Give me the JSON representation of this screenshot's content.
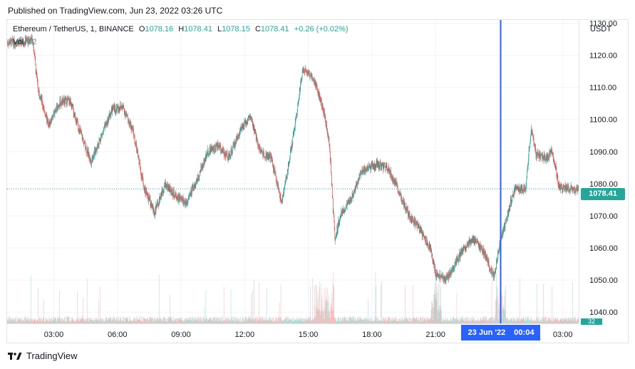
{
  "header": {
    "published": "Published on TradingView.com, Jun 23, 2022 03:26 UTC"
  },
  "legend": {
    "symbol": "Ethereum / TetherUS, 1, BINANCE",
    "open_label": "O",
    "open": "1078.16",
    "high_label": "H",
    "high": "1078.41",
    "low_label": "L",
    "low": "1078.15",
    "close_label": "C",
    "close": "1078.41",
    "change": "+0.26 (+0.02%)",
    "vol_label": "Vol",
    "vol_value": "32"
  },
  "axis": {
    "currency": "USDT"
  },
  "last_price": "1078.41",
  "last_volume": "32",
  "crosshair": {
    "date": "23 Jun '22",
    "time": "00:04"
  },
  "footer": {
    "brand": "TradingView",
    "logo_icon": "tradingview-logo-icon"
  },
  "colors": {
    "up": "#26a69a",
    "down": "#ef5350",
    "crosshair": "#2962ff",
    "grid": "#f0f3fa"
  },
  "chart_data": {
    "type": "candlestick",
    "title": "Ethereum / TetherUS, 1, BINANCE",
    "ylabel": "USDT",
    "ylim": [
      1036.5,
      1131
    ],
    "y_ticks": [
      1040,
      1050,
      1060,
      1070,
      1080,
      1090,
      1100,
      1110,
      1120,
      1130
    ],
    "x_ticks": [
      "03:00",
      "06:00",
      "09:00",
      "12:00",
      "15:00",
      "18:00",
      "21:00",
      "23 Jun '22",
      "03:00"
    ],
    "grid": true,
    "price_path": [
      [
        "01:30",
        1124
      ],
      [
        "02:00",
        1125
      ],
      [
        "02:15",
        1110
      ],
      [
        "02:45",
        1098
      ],
      [
        "03:15",
        1105
      ],
      [
        "03:45",
        1106
      ],
      [
        "04:15",
        1096
      ],
      [
        "04:45",
        1087
      ],
      [
        "05:15",
        1095
      ],
      [
        "05:45",
        1103
      ],
      [
        "06:15",
        1104
      ],
      [
        "06:45",
        1096
      ],
      [
        "07:15",
        1079
      ],
      [
        "07:45",
        1071
      ],
      [
        "08:15",
        1080
      ],
      [
        "08:45",
        1076
      ],
      [
        "09:15",
        1074
      ],
      [
        "09:45",
        1081
      ],
      [
        "10:15",
        1090
      ],
      [
        "10:45",
        1092
      ],
      [
        "11:15",
        1088
      ],
      [
        "11:45",
        1096
      ],
      [
        "12:15",
        1101
      ],
      [
        "12:45",
        1090
      ],
      [
        "13:15",
        1088
      ],
      [
        "13:45",
        1074
      ],
      [
        "14:15",
        1093
      ],
      [
        "14:45",
        1116
      ],
      [
        "15:15",
        1113
      ],
      [
        "15:45",
        1102
      ],
      [
        "16:00",
        1092
      ],
      [
        "16:15",
        1063
      ],
      [
        "16:30",
        1070
      ],
      [
        "17:00",
        1075
      ],
      [
        "17:30",
        1084
      ],
      [
        "18:15",
        1086
      ],
      [
        "18:45",
        1085
      ],
      [
        "19:15",
        1078
      ],
      [
        "19:45",
        1070
      ],
      [
        "20:15",
        1066
      ],
      [
        "20:45",
        1060
      ],
      [
        "21:00",
        1052
      ],
      [
        "21:30",
        1050
      ],
      [
        "22:15",
        1059
      ],
      [
        "22:45",
        1063
      ],
      [
        "23:15",
        1059
      ],
      [
        "23:45",
        1051
      ],
      [
        "00:04",
        1062
      ],
      [
        "00:30",
        1073
      ],
      [
        "00:45",
        1079
      ],
      [
        "01:15",
        1078
      ],
      [
        "01:30",
        1097
      ],
      [
        "01:45",
        1089
      ],
      [
        "02:15",
        1088
      ],
      [
        "02:30",
        1090
      ],
      [
        "02:50",
        1079
      ],
      [
        "03:26",
        1078.41
      ]
    ],
    "volume": {
      "last": 32,
      "note": "volume bars along the bottom of the pane; spikes near 15:30-16:00, 21:00 and 00:00"
    }
  }
}
